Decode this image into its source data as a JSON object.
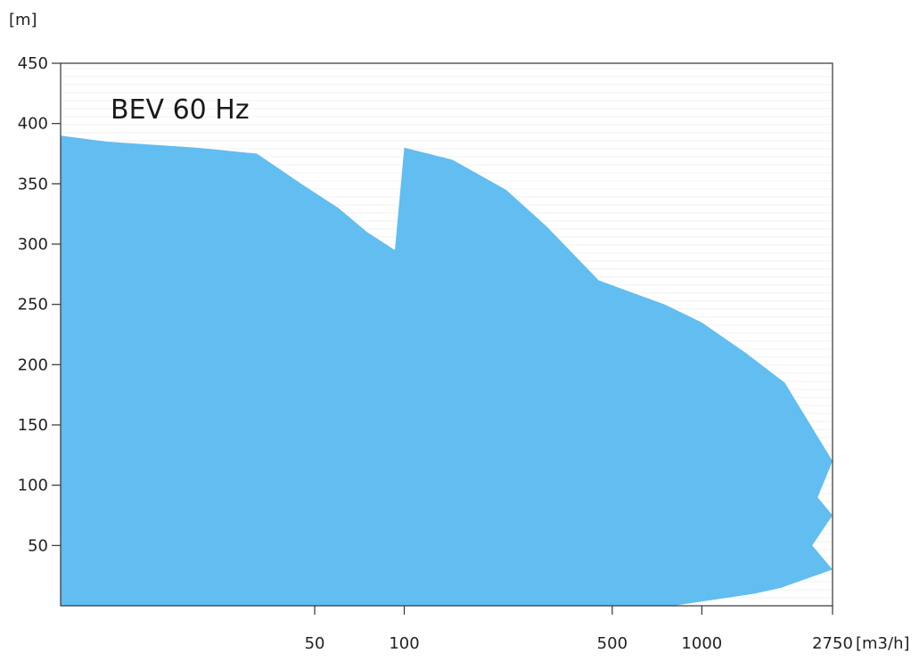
{
  "chart_data": {
    "type": "area",
    "title": "BEV 60 Hz",
    "xlabel": "[m3/h]",
    "ylabel": "[m]",
    "x_scale": "log",
    "xlim": [
      7,
      2750
    ],
    "ylim": [
      0,
      450
    ],
    "x_ticks": [
      {
        "value": 50,
        "label": "50"
      },
      {
        "value": 100,
        "label": "100"
      },
      {
        "value": 500,
        "label": "500"
      },
      {
        "value": 1000,
        "label": "1000"
      },
      {
        "value": 2750,
        "label": "2750"
      }
    ],
    "y_ticks": [
      {
        "value": 50,
        "label": "50"
      },
      {
        "value": 100,
        "label": "100"
      },
      {
        "value": 150,
        "label": "150"
      },
      {
        "value": 200,
        "label": "200"
      },
      {
        "value": 250,
        "label": "250"
      },
      {
        "value": 300,
        "label": "300"
      },
      {
        "value": 350,
        "label": "350"
      },
      {
        "value": 400,
        "label": "400"
      },
      {
        "value": 450,
        "label": "450"
      }
    ],
    "grid": false,
    "fill_color": "#62bdf0",
    "envelope": [
      {
        "x": 7,
        "y": 0
      },
      {
        "x": 7,
        "y": 390
      },
      {
        "x": 10,
        "y": 385
      },
      {
        "x": 20,
        "y": 380
      },
      {
        "x": 32,
        "y": 375
      },
      {
        "x": 45,
        "y": 350
      },
      {
        "x": 60,
        "y": 330
      },
      {
        "x": 75,
        "y": 310
      },
      {
        "x": 93,
        "y": 295
      },
      {
        "x": 100,
        "y": 380
      },
      {
        "x": 145,
        "y": 370
      },
      {
        "x": 220,
        "y": 345
      },
      {
        "x": 300,
        "y": 315
      },
      {
        "x": 450,
        "y": 270
      },
      {
        "x": 550,
        "y": 262
      },
      {
        "x": 750,
        "y": 250
      },
      {
        "x": 1000,
        "y": 235
      },
      {
        "x": 1400,
        "y": 210
      },
      {
        "x": 1900,
        "y": 185
      },
      {
        "x": 2750,
        "y": 120
      },
      {
        "x": 2450,
        "y": 90
      },
      {
        "x": 2750,
        "y": 75
      },
      {
        "x": 2350,
        "y": 50
      },
      {
        "x": 2750,
        "y": 30
      },
      {
        "x": 1850,
        "y": 15
      },
      {
        "x": 1500,
        "y": 10
      },
      {
        "x": 800,
        "y": 0
      }
    ]
  }
}
